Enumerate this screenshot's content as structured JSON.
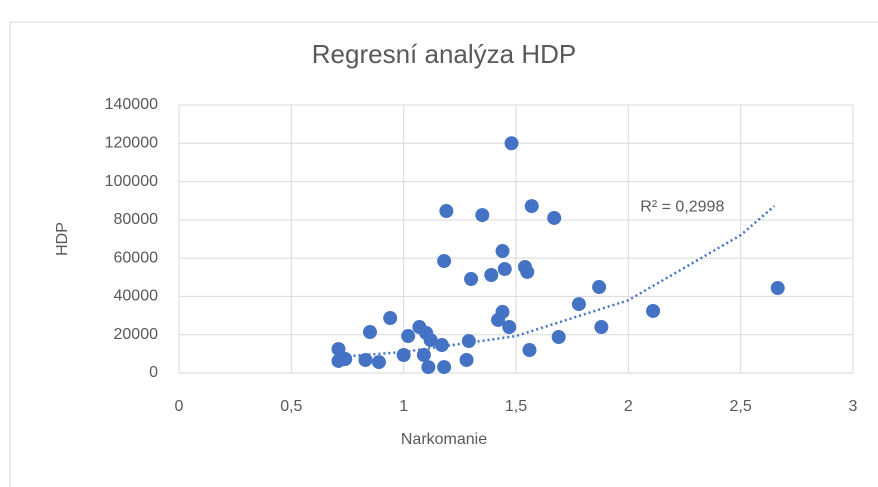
{
  "chart_data": {
    "type": "scatter",
    "title": "Regresní analýza HDP",
    "x_label": "Narkomanie",
    "y_label": "HDP",
    "series": [
      {
        "name": "HDP",
        "color": "#4472c4",
        "x": [
          1.48,
          1.19,
          1.35,
          1.57,
          1.67,
          1.44,
          1.18,
          1.39,
          1.45,
          1.54,
          1.55,
          1.3,
          1.87,
          2.665,
          1.78,
          2.11,
          1.44,
          1.42,
          1.47,
          1.88,
          0.94,
          0.85,
          1.07,
          1.1,
          1.02,
          1.12,
          1.29,
          1.17,
          1.69,
          1.56,
          0.71,
          1.0,
          1.09,
          0.71,
          0.74,
          0.83,
          0.89,
          1.28,
          1.11,
          1.18
        ],
        "values": [
          120000,
          84600,
          82500,
          87200,
          81000,
          63700,
          58500,
          51200,
          54300,
          55400,
          52800,
          49100,
          44900,
          44400,
          36000,
          32400,
          31900,
          27700,
          24000,
          24000,
          28700,
          21400,
          24000,
          20900,
          19300,
          17200,
          16700,
          14600,
          18800,
          12000,
          12500,
          9400,
          9400,
          6300,
          7300,
          6800,
          5700,
          6800,
          3100,
          3100
        ]
      }
    ],
    "trendline": {
      "label": "R² = 0,2998",
      "color": "#4472c4",
      "x": [
        0.71,
        1,
        1.5,
        2,
        2.5,
        2.65
      ],
      "values": [
        8400,
        11000,
        19300,
        38000,
        72000,
        87200
      ]
    },
    "xlim": [
      0,
      3
    ],
    "xticks": [
      0,
      {
        "value": 0.5,
        "label": "0,5"
      },
      1,
      {
        "value": 1.5,
        "label": "1,5"
      },
      2,
      {
        "value": 2.5,
        "label": "2,5"
      },
      3
    ],
    "ylim": [
      0,
      140000
    ],
    "yticks": [
      0,
      20000,
      40000,
      60000,
      80000,
      100000,
      120000,
      140000
    ],
    "grid": true
  }
}
